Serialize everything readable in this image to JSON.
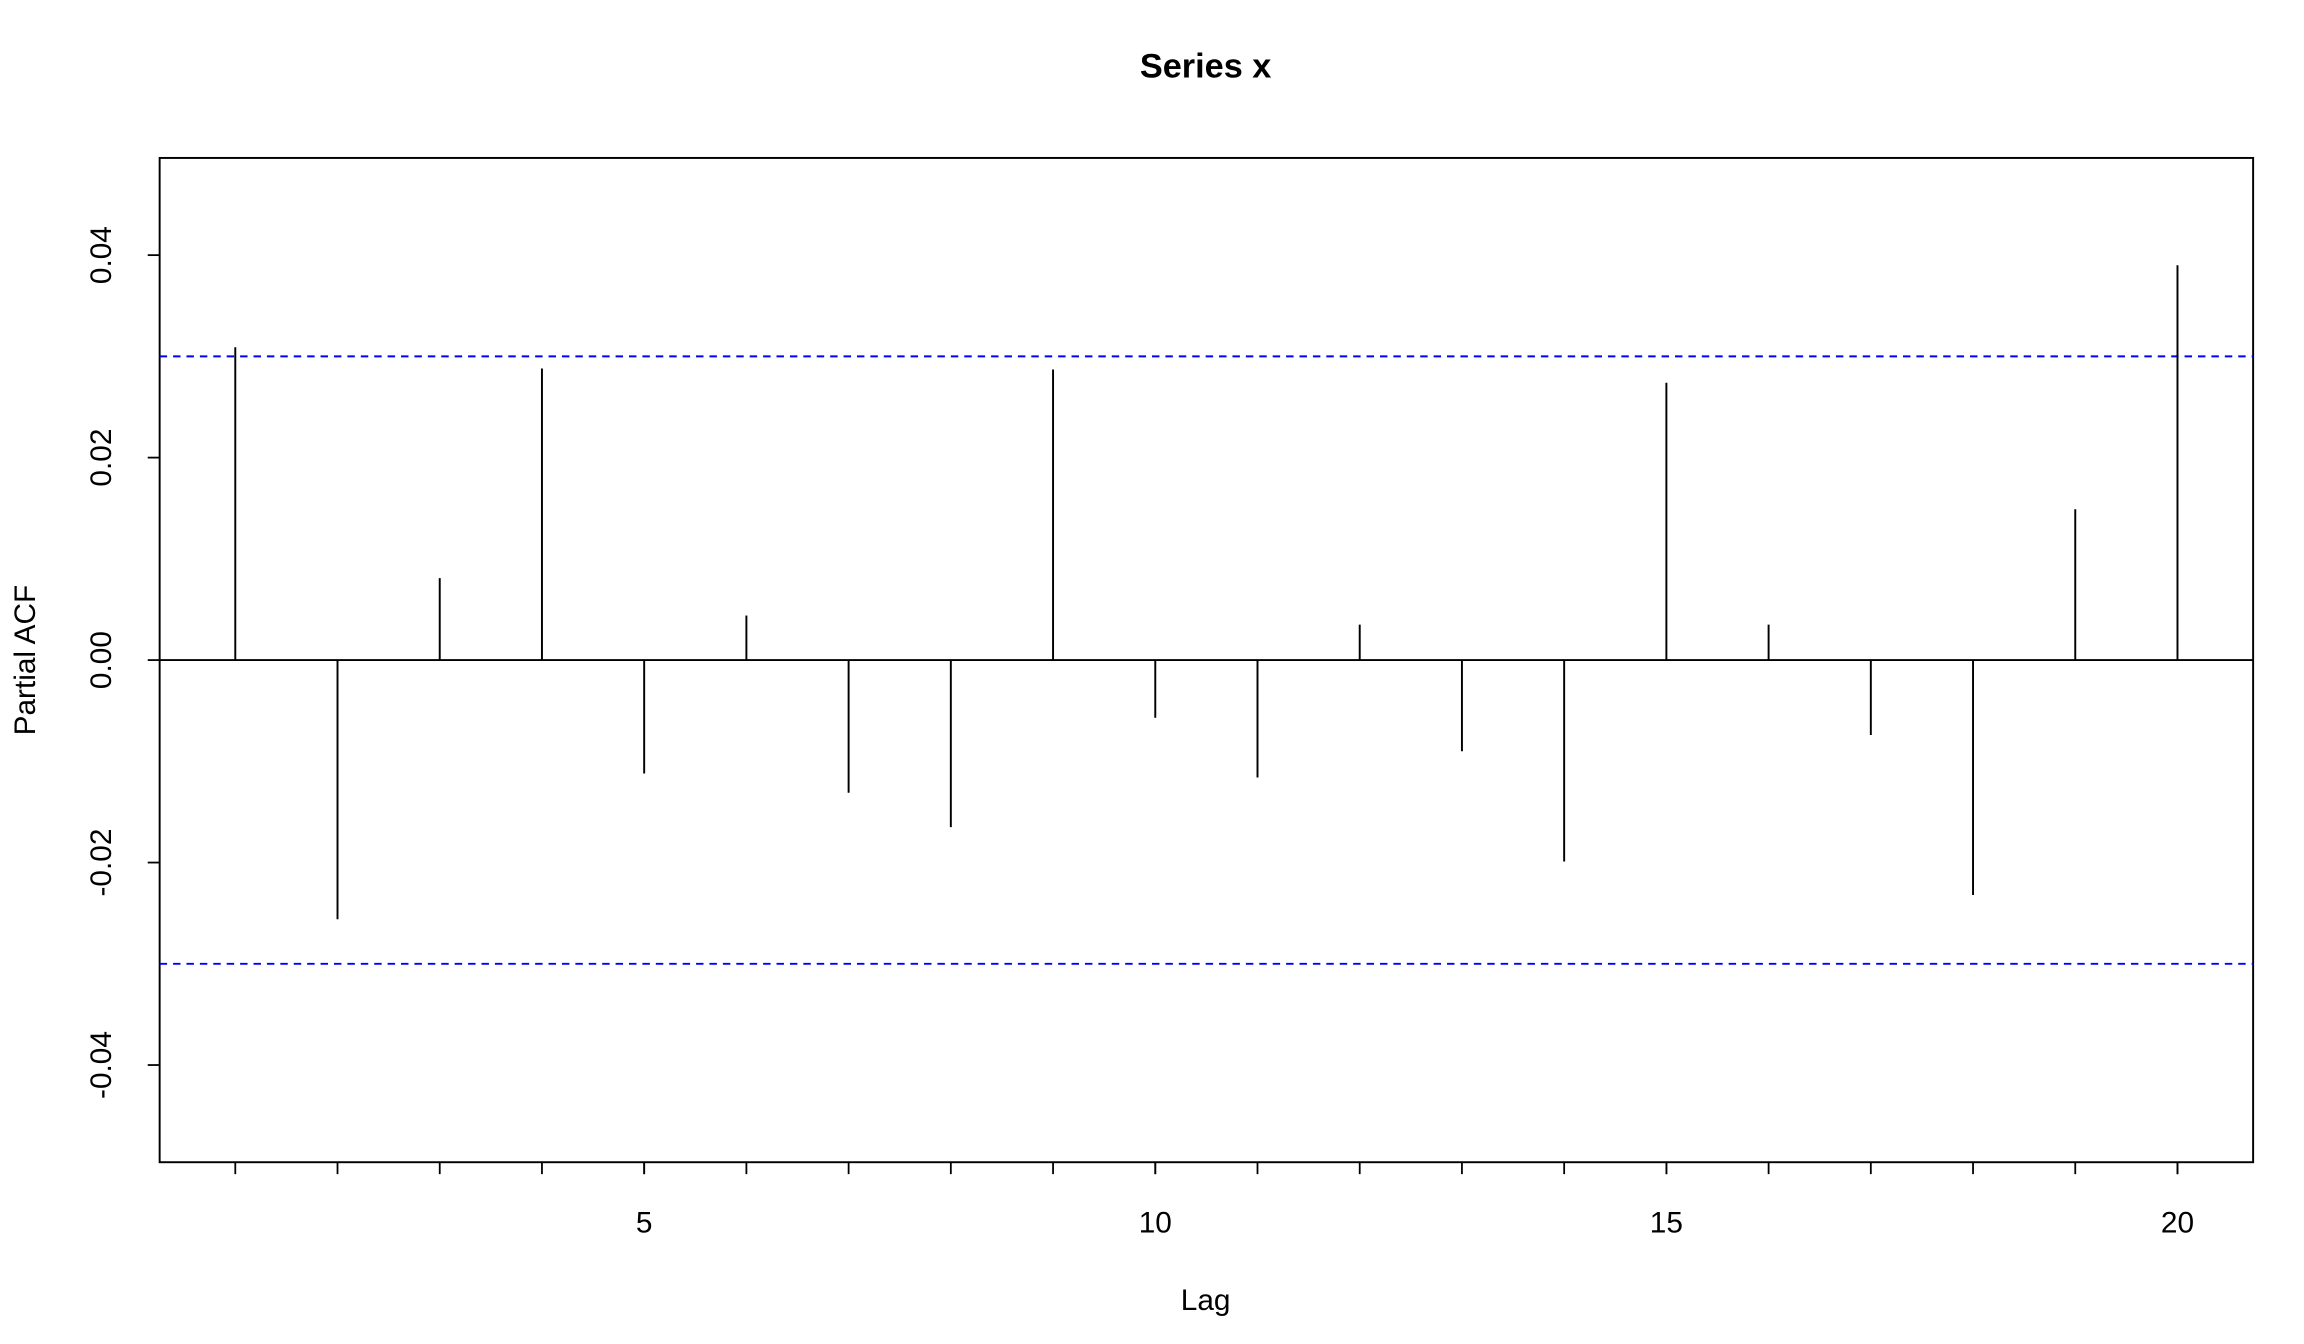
{
  "chart_data": {
    "type": "pacf",
    "title": "Series  x",
    "xlabel": "Lag",
    "ylabel": "Partial ACF",
    "x": [
      1,
      2,
      3,
      4,
      5,
      6,
      7,
      8,
      9,
      10,
      11,
      12,
      13,
      14,
      15,
      16,
      17,
      18,
      19,
      20
    ],
    "values": [
      0.0309,
      -0.0256,
      0.0081,
      0.0288,
      -0.0112,
      0.0044,
      -0.0131,
      -0.0165,
      0.0287,
      -0.0057,
      -0.0116,
      0.0035,
      -0.009,
      -0.0199,
      0.0274,
      0.0035,
      -0.0074,
      -0.0232,
      0.0149,
      0.039
    ],
    "color": "#000000",
    "ci_bounds": [
      0.03,
      -0.03
    ],
    "ci_color": "#0000ff",
    "xlim": [
      0.26,
      20.74
    ],
    "ylim": [
      -0.0496,
      0.0496
    ],
    "xticks": [
      5,
      10,
      15,
      20
    ],
    "yticks": [
      {
        "value": -0.04,
        "label": "-0.04"
      },
      {
        "value": -0.02,
        "label": "-0.02"
      },
      {
        "value": 0,
        "label": "0.00"
      },
      {
        "value": 0.02,
        "label": "0.02"
      },
      {
        "value": 0.04,
        "label": "0.04"
      }
    ]
  }
}
